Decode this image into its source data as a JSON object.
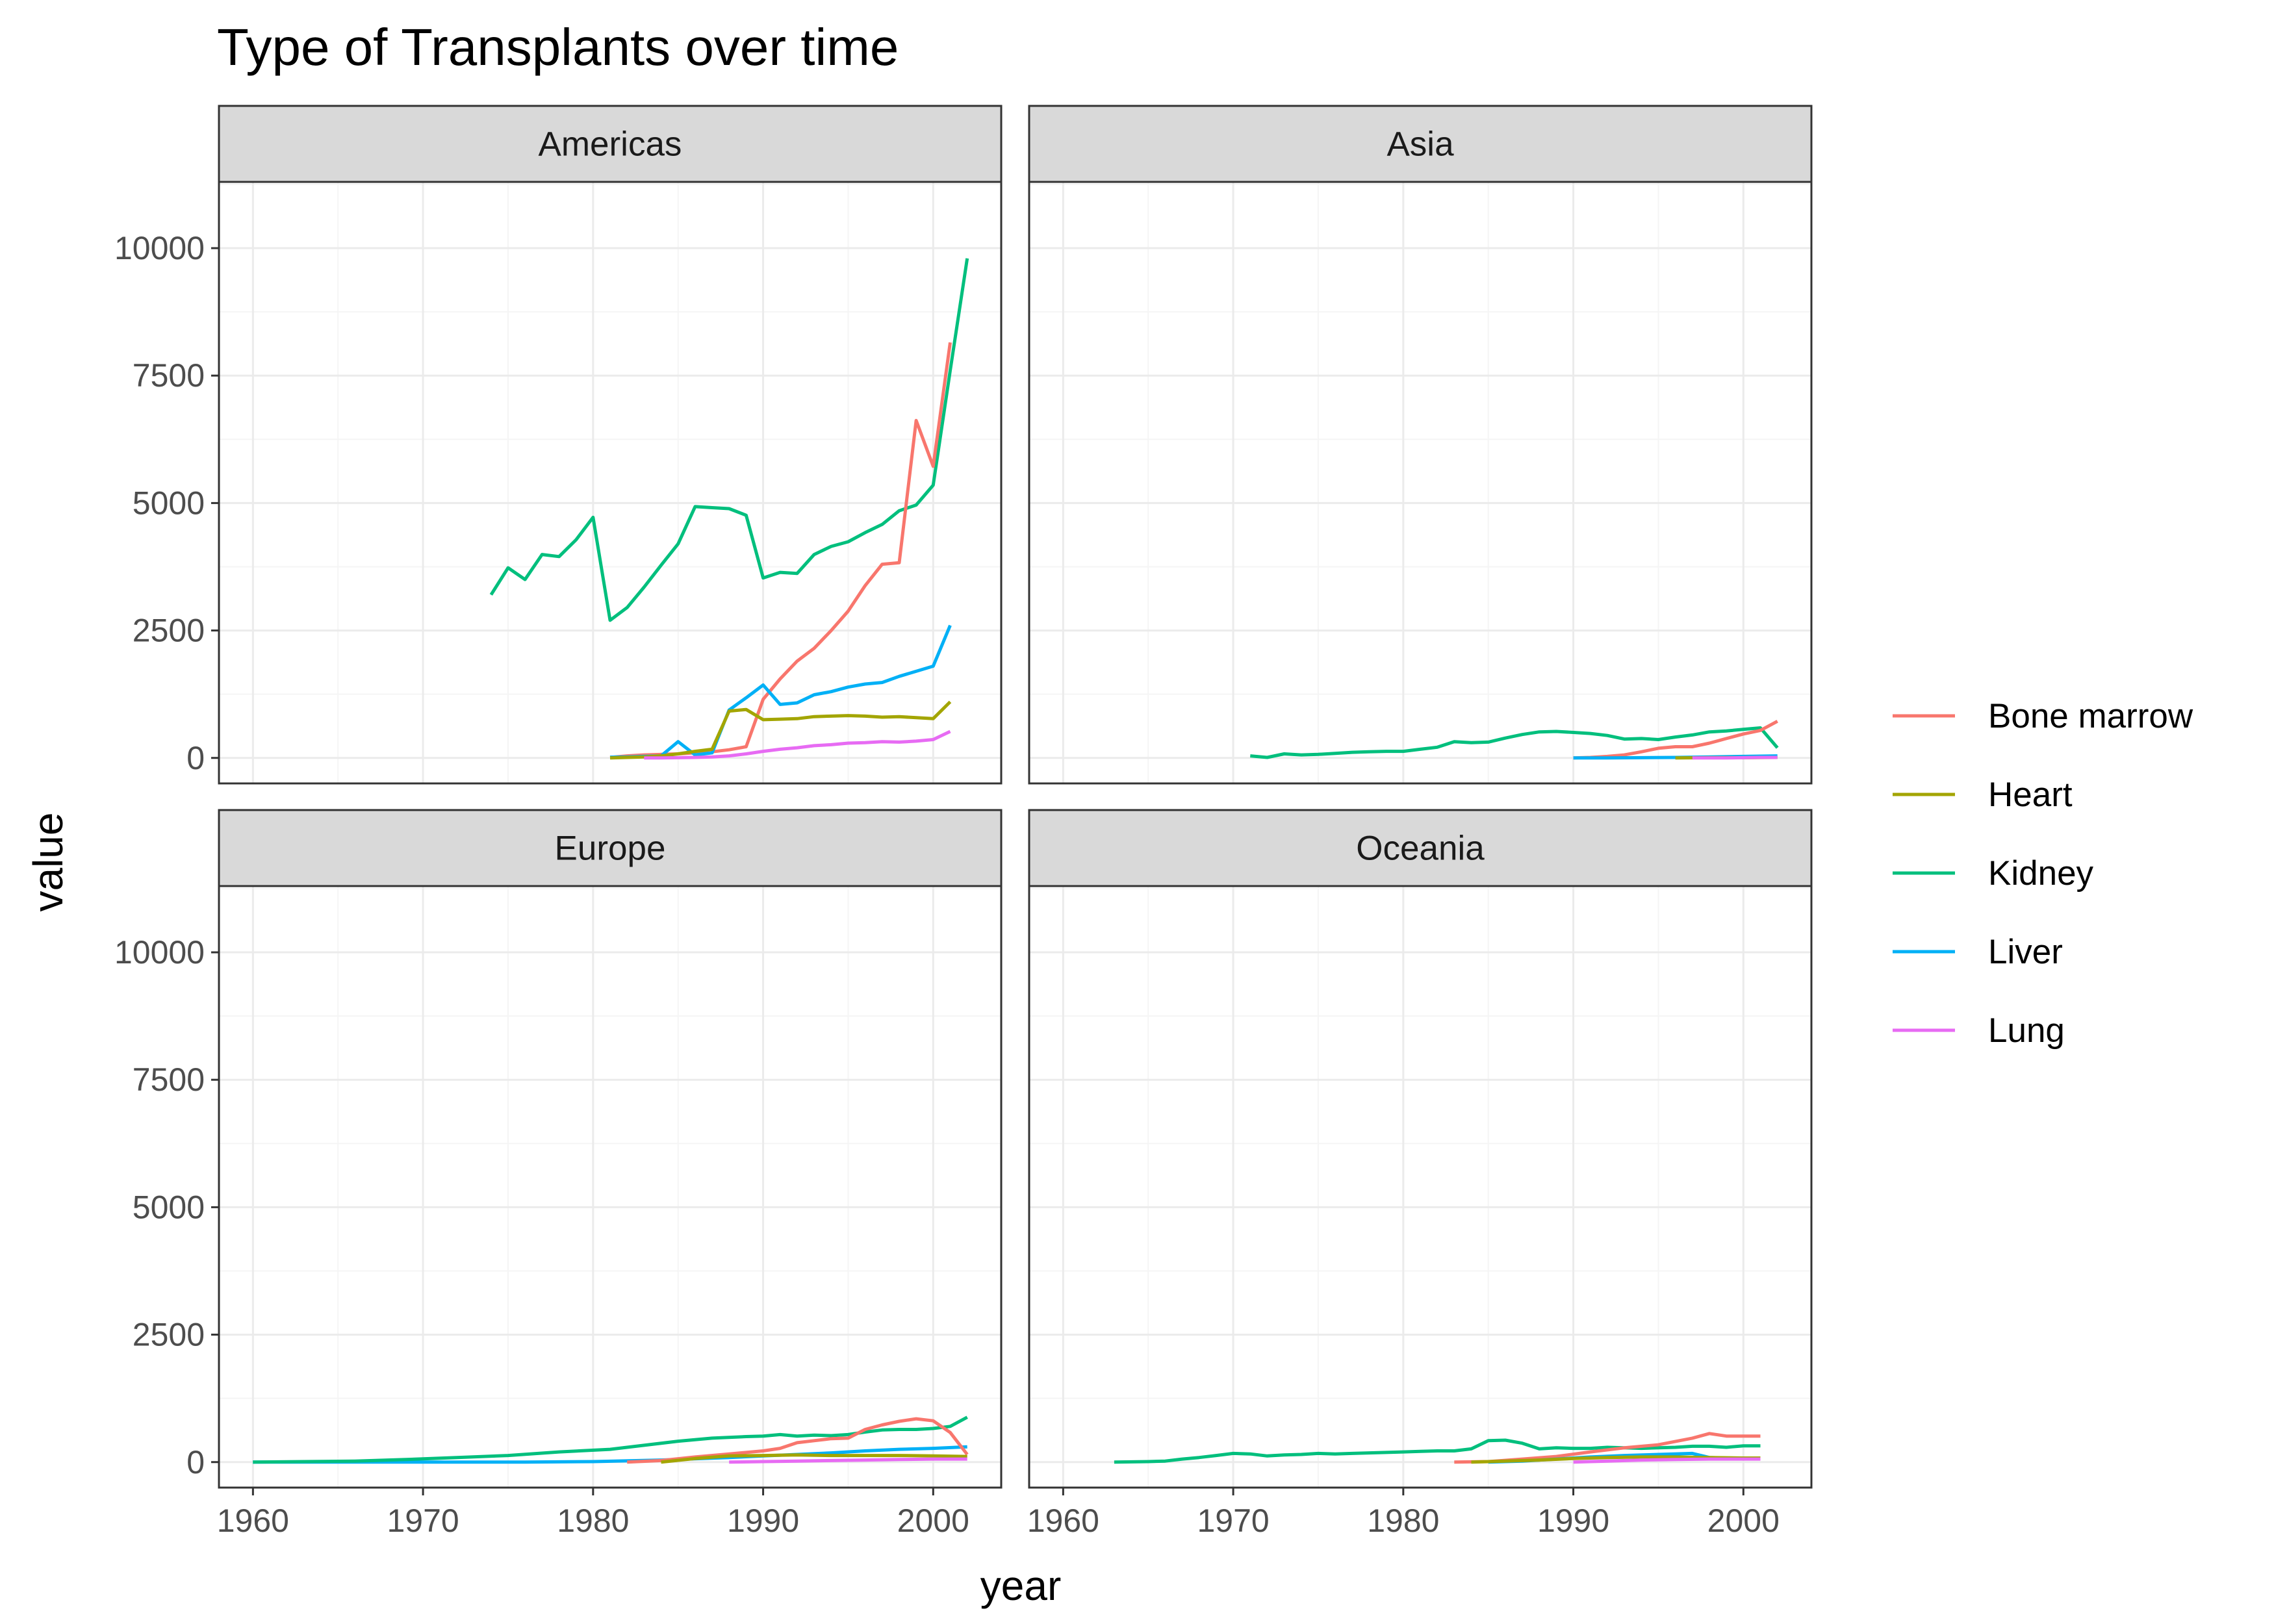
{
  "chart_data": {
    "type": "line",
    "title": "Type of Transplants over time",
    "xlabel": "year",
    "ylabel": "value",
    "xlim": [
      1958,
      2004
    ],
    "ylim": [
      -500,
      11300
    ],
    "x_ticks": [
      1960,
      1970,
      1980,
      1990,
      2000
    ],
    "y_ticks": [
      0,
      2500,
      5000,
      7500,
      10000
    ],
    "grid": true,
    "legend_position": "right",
    "colors": {
      "Bone marrow": "#F8766D",
      "Heart": "#A3A500",
      "Kidney": "#00BF7D",
      "Liver": "#00B0F6",
      "Lung": "#E76BF3"
    },
    "legend": [
      "Bone marrow",
      "Heart",
      "Kidney",
      "Liver",
      "Lung"
    ],
    "panels": [
      {
        "label": "Americas",
        "series": [
          {
            "name": "Kidney",
            "x": [
              1974,
              1975,
              1976,
              1977,
              1978,
              1979,
              1980,
              1981,
              1982,
              1983,
              1984,
              1985,
              1986,
              1987,
              1988,
              1989,
              1990,
              1991,
              1992,
              1993,
              1994,
              1995,
              1996,
              1997,
              1998,
              1999,
              2000,
              2001,
              2002
            ],
            "values": [
              3200,
              3730,
              3500,
              3990,
              3950,
              4280,
              4720,
              2700,
              2950,
              3350,
              3780,
              4200,
              4930,
              4910,
              4890,
              4760,
              3530,
              3640,
              3620,
              3990,
              4150,
              4240,
              4420,
              4580,
              4850,
              4960,
              5350,
              7600,
              9800
            ]
          },
          {
            "name": "Bone marrow",
            "x": [
              1981,
              1982,
              1983,
              1984,
              1985,
              1986,
              1987,
              1988,
              1989,
              1990,
              1991,
              1992,
              1993,
              1994,
              1995,
              1996,
              1997,
              1998,
              1999,
              2000,
              2001
            ],
            "values": [
              10,
              40,
              60,
              70,
              80,
              100,
              120,
              160,
              220,
              1150,
              1550,
              1900,
              2150,
              2500,
              2880,
              3380,
              3800,
              3830,
              6620,
              5720,
              8150
            ]
          },
          {
            "name": "Liver",
            "x": [
              1981,
              1982,
              1983,
              1984,
              1985,
              1986,
              1987,
              1988,
              1989,
              1990,
              1991,
              1992,
              1993,
              1994,
              1995,
              1996,
              1997,
              1998,
              1999,
              2000,
              2001
            ],
            "values": [
              15,
              20,
              30,
              40,
              320,
              60,
              100,
              940,
              1180,
              1430,
              1050,
              1080,
              1240,
              1300,
              1390,
              1450,
              1480,
              1600,
              1700,
              1800,
              2600
            ]
          },
          {
            "name": "Heart",
            "x": [
              1981,
              1982,
              1983,
              1984,
              1985,
              1986,
              1987,
              1988,
              1989,
              1990,
              1991,
              1992,
              1993,
              1994,
              1995,
              1996,
              1997,
              1998,
              1999,
              2000,
              2001
            ],
            "values": [
              0,
              10,
              20,
              40,
              80,
              130,
              170,
              920,
              950,
              750,
              760,
              770,
              810,
              820,
              830,
              820,
              800,
              810,
              790,
              770,
              1100
            ]
          },
          {
            "name": "Lung",
            "x": [
              1983,
              1984,
              1985,
              1986,
              1987,
              1988,
              1989,
              1990,
              1991,
              1992,
              1993,
              1994,
              1995,
              1996,
              1997,
              1998,
              1999,
              2000,
              2001
            ],
            "values": [
              0,
              0,
              5,
              10,
              20,
              40,
              80,
              130,
              170,
              200,
              240,
              260,
              290,
              300,
              320,
              310,
              330,
              360,
              520
            ]
          }
        ]
      },
      {
        "label": "Asia",
        "series": [
          {
            "name": "Kidney",
            "x": [
              1971,
              1972,
              1973,
              1974,
              1975,
              1976,
              1977,
              1978,
              1979,
              1980,
              1981,
              1982,
              1983,
              1984,
              1985,
              1986,
              1987,
              1988,
              1989,
              1990,
              1991,
              1992,
              1993,
              1994,
              1995,
              1996,
              1997,
              1998,
              1999,
              2000,
              2001,
              2002
            ],
            "values": [
              40,
              10,
              80,
              60,
              70,
              90,
              110,
              120,
              130,
              130,
              170,
              210,
              320,
              300,
              310,
              390,
              460,
              510,
              520,
              500,
              480,
              440,
              370,
              380,
              360,
              410,
              450,
              510,
              530,
              560,
              590,
              200
            ]
          },
          {
            "name": "Bone marrow",
            "x": [
              1990,
              1991,
              1992,
              1993,
              1994,
              1995,
              1996,
              1997,
              1998,
              1999,
              2000,
              2001,
              2002
            ],
            "values": [
              0,
              10,
              30,
              60,
              120,
              190,
              220,
              220,
              290,
              380,
              470,
              540,
              720
            ]
          },
          {
            "name": "Liver",
            "x": [
              1990,
              1992,
              1994,
              1996,
              1998,
              2000,
              2002
            ],
            "values": [
              0,
              0,
              5,
              10,
              20,
              30,
              40
            ]
          },
          {
            "name": "Heart",
            "x": [
              1996,
              1998,
              2000,
              2002
            ],
            "values": [
              0,
              5,
              5,
              10
            ]
          },
          {
            "name": "Lung",
            "x": [
              1997,
              1999,
              2001,
              2002
            ],
            "values": [
              0,
              0,
              10,
              10
            ]
          }
        ]
      },
      {
        "label": "Europe",
        "series": [
          {
            "name": "Liver",
            "x": [
              1960,
              1964,
              1968,
              1972,
              1976,
              1980,
              1984,
              1988,
              1990,
              1992,
              1994,
              1996,
              1998,
              2000,
              2002
            ],
            "values": [
              0,
              0,
              0,
              0,
              0,
              10,
              40,
              90,
              120,
              150,
              180,
              220,
              250,
              270,
              300
            ]
          },
          {
            "name": "Kidney",
            "x": [
              1960,
              1963,
              1966,
              1969,
              1972,
              1975,
              1978,
              1981,
              1983,
              1985,
              1987,
              1989,
              1990,
              1991,
              1992,
              1993,
              1994,
              1995,
              1996,
              1997,
              1998,
              1999,
              2000,
              2001,
              2002
            ],
            "values": [
              0,
              10,
              20,
              50,
              90,
              130,
              200,
              250,
              330,
              410,
              470,
              500,
              510,
              540,
              510,
              530,
              520,
              540,
              590,
              630,
              640,
              640,
              660,
              700,
              880
            ]
          },
          {
            "name": "Bone marrow",
            "x": [
              1982,
              1984,
              1986,
              1988,
              1990,
              1991,
              1992,
              1993,
              1994,
              1995,
              1996,
              1997,
              1998,
              1999,
              2000,
              2001,
              2002
            ],
            "values": [
              0,
              30,
              100,
              160,
              220,
              270,
              380,
              420,
              460,
              470,
              640,
              730,
              800,
              850,
              810,
              580,
              150
            ]
          },
          {
            "name": "Heart",
            "x": [
              1984,
              1986,
              1988,
              1990,
              1992,
              1994,
              1996,
              1998,
              2000,
              2002
            ],
            "values": [
              0,
              70,
              120,
              130,
              140,
              130,
              130,
              130,
              120,
              110
            ]
          },
          {
            "name": "Lung",
            "x": [
              1988,
              1990,
              1992,
              1994,
              1996,
              1998,
              2000,
              2002
            ],
            "values": [
              0,
              10,
              20,
              30,
              40,
              50,
              60,
              60
            ]
          }
        ]
      },
      {
        "label": "Oceania",
        "series": [
          {
            "name": "Kidney",
            "x": [
              1963,
              1965,
              1966,
              1967,
              1968,
              1969,
              1970,
              1971,
              1972,
              1973,
              1974,
              1975,
              1976,
              1977,
              1978,
              1979,
              1980,
              1981,
              1982,
              1983,
              1984,
              1985,
              1986,
              1987,
              1988,
              1989,
              1990,
              1991,
              1992,
              1993,
              1994,
              1995,
              1996,
              1997,
              1998,
              1999,
              2000,
              2001
            ],
            "values": [
              0,
              10,
              20,
              60,
              90,
              130,
              170,
              160,
              120,
              140,
              150,
              170,
              160,
              170,
              180,
              190,
              200,
              210,
              220,
              220,
              260,
              420,
              430,
              370,
              260,
              280,
              270,
              270,
              290,
              280,
              270,
              280,
              290,
              310,
              310,
              290,
              320,
              320
            ]
          },
          {
            "name": "Bone marrow",
            "x": [
              1983,
              1985,
              1987,
              1989,
              1991,
              1993,
              1995,
              1997,
              1998,
              1999,
              2000,
              2001
            ],
            "values": [
              0,
              10,
              60,
              110,
              200,
              280,
              340,
              470,
              560,
              510,
              510,
              510
            ]
          },
          {
            "name": "Liver",
            "x": [
              1985,
              1987,
              1989,
              1991,
              1993,
              1995,
              1997,
              1998,
              1999,
              2000,
              2001
            ],
            "values": [
              0,
              20,
              60,
              100,
              130,
              150,
              170,
              90,
              80,
              70,
              70
            ]
          },
          {
            "name": "Heart",
            "x": [
              1984,
              1986,
              1988,
              1990,
              1992,
              1994,
              1996,
              1998,
              2000,
              2001
            ],
            "values": [
              0,
              20,
              40,
              70,
              90,
              100,
              100,
              90,
              80,
              80
            ]
          },
          {
            "name": "Lung",
            "x": [
              1990,
              1992,
              1994,
              1996,
              1998,
              2000,
              2001
            ],
            "values": [
              0,
              20,
              40,
              50,
              60,
              60,
              60
            ]
          }
        ]
      }
    ]
  }
}
